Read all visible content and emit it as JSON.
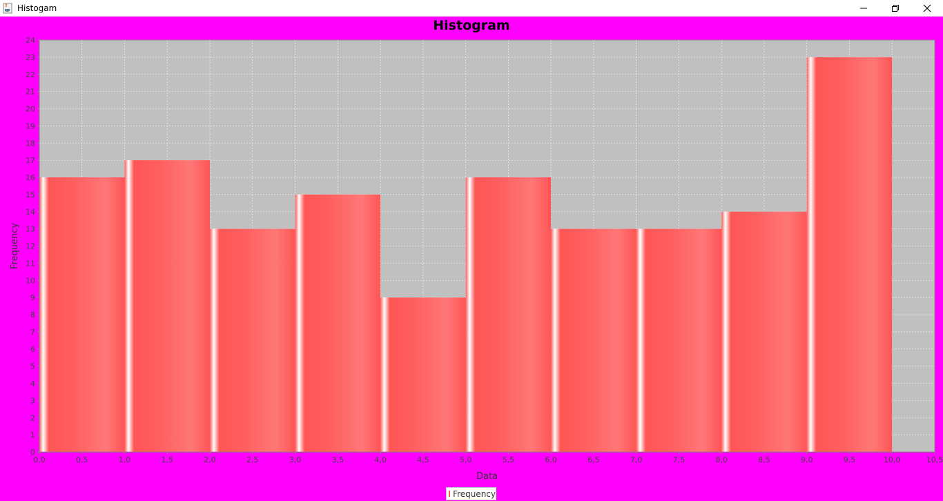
{
  "window": {
    "title": "Histogam",
    "icon": "java-cup-icon",
    "controls": [
      "minimize-icon",
      "restore-icon",
      "close-icon"
    ]
  },
  "colors": {
    "background": "#ff00ff",
    "plot_background": "#c0c0c0",
    "bar": "#ff5555"
  },
  "chart_data": {
    "type": "bar",
    "title": "Histogram",
    "xlabel": "Data",
    "ylabel": "Frequency",
    "xlim": [
      0,
      10.5
    ],
    "ylim": [
      0,
      24
    ],
    "x_ticks": [
      "0,0",
      "0,5",
      "1,0",
      "1,5",
      "2,0",
      "2,5",
      "3,0",
      "3,5",
      "4,0",
      "4,5",
      "5,0",
      "5,5",
      "6,0",
      "6,5",
      "7,0",
      "7,5",
      "8,0",
      "8,5",
      "9,0",
      "9,5",
      "10,0",
      "10,5"
    ],
    "y_ticks": [
      "0",
      "1",
      "2",
      "3",
      "4",
      "5",
      "6",
      "7",
      "8",
      "9",
      "10",
      "11",
      "12",
      "13",
      "14",
      "15",
      "16",
      "17",
      "18",
      "19",
      "20",
      "21",
      "22",
      "23",
      "24"
    ],
    "bins": [
      {
        "start": 0,
        "end": 1,
        "value": 16
      },
      {
        "start": 1,
        "end": 2,
        "value": 17
      },
      {
        "start": 2,
        "end": 3,
        "value": 13
      },
      {
        "start": 3,
        "end": 4,
        "value": 15
      },
      {
        "start": 4,
        "end": 5,
        "value": 9
      },
      {
        "start": 5,
        "end": 6,
        "value": 16
      },
      {
        "start": 6,
        "end": 7,
        "value": 13
      },
      {
        "start": 7,
        "end": 8,
        "value": 13
      },
      {
        "start": 8,
        "end": 9,
        "value": 14
      },
      {
        "start": 9,
        "end": 10,
        "value": 23
      }
    ],
    "grid": true,
    "legend": {
      "position": "bottom",
      "entries": [
        "Frequency"
      ]
    }
  }
}
